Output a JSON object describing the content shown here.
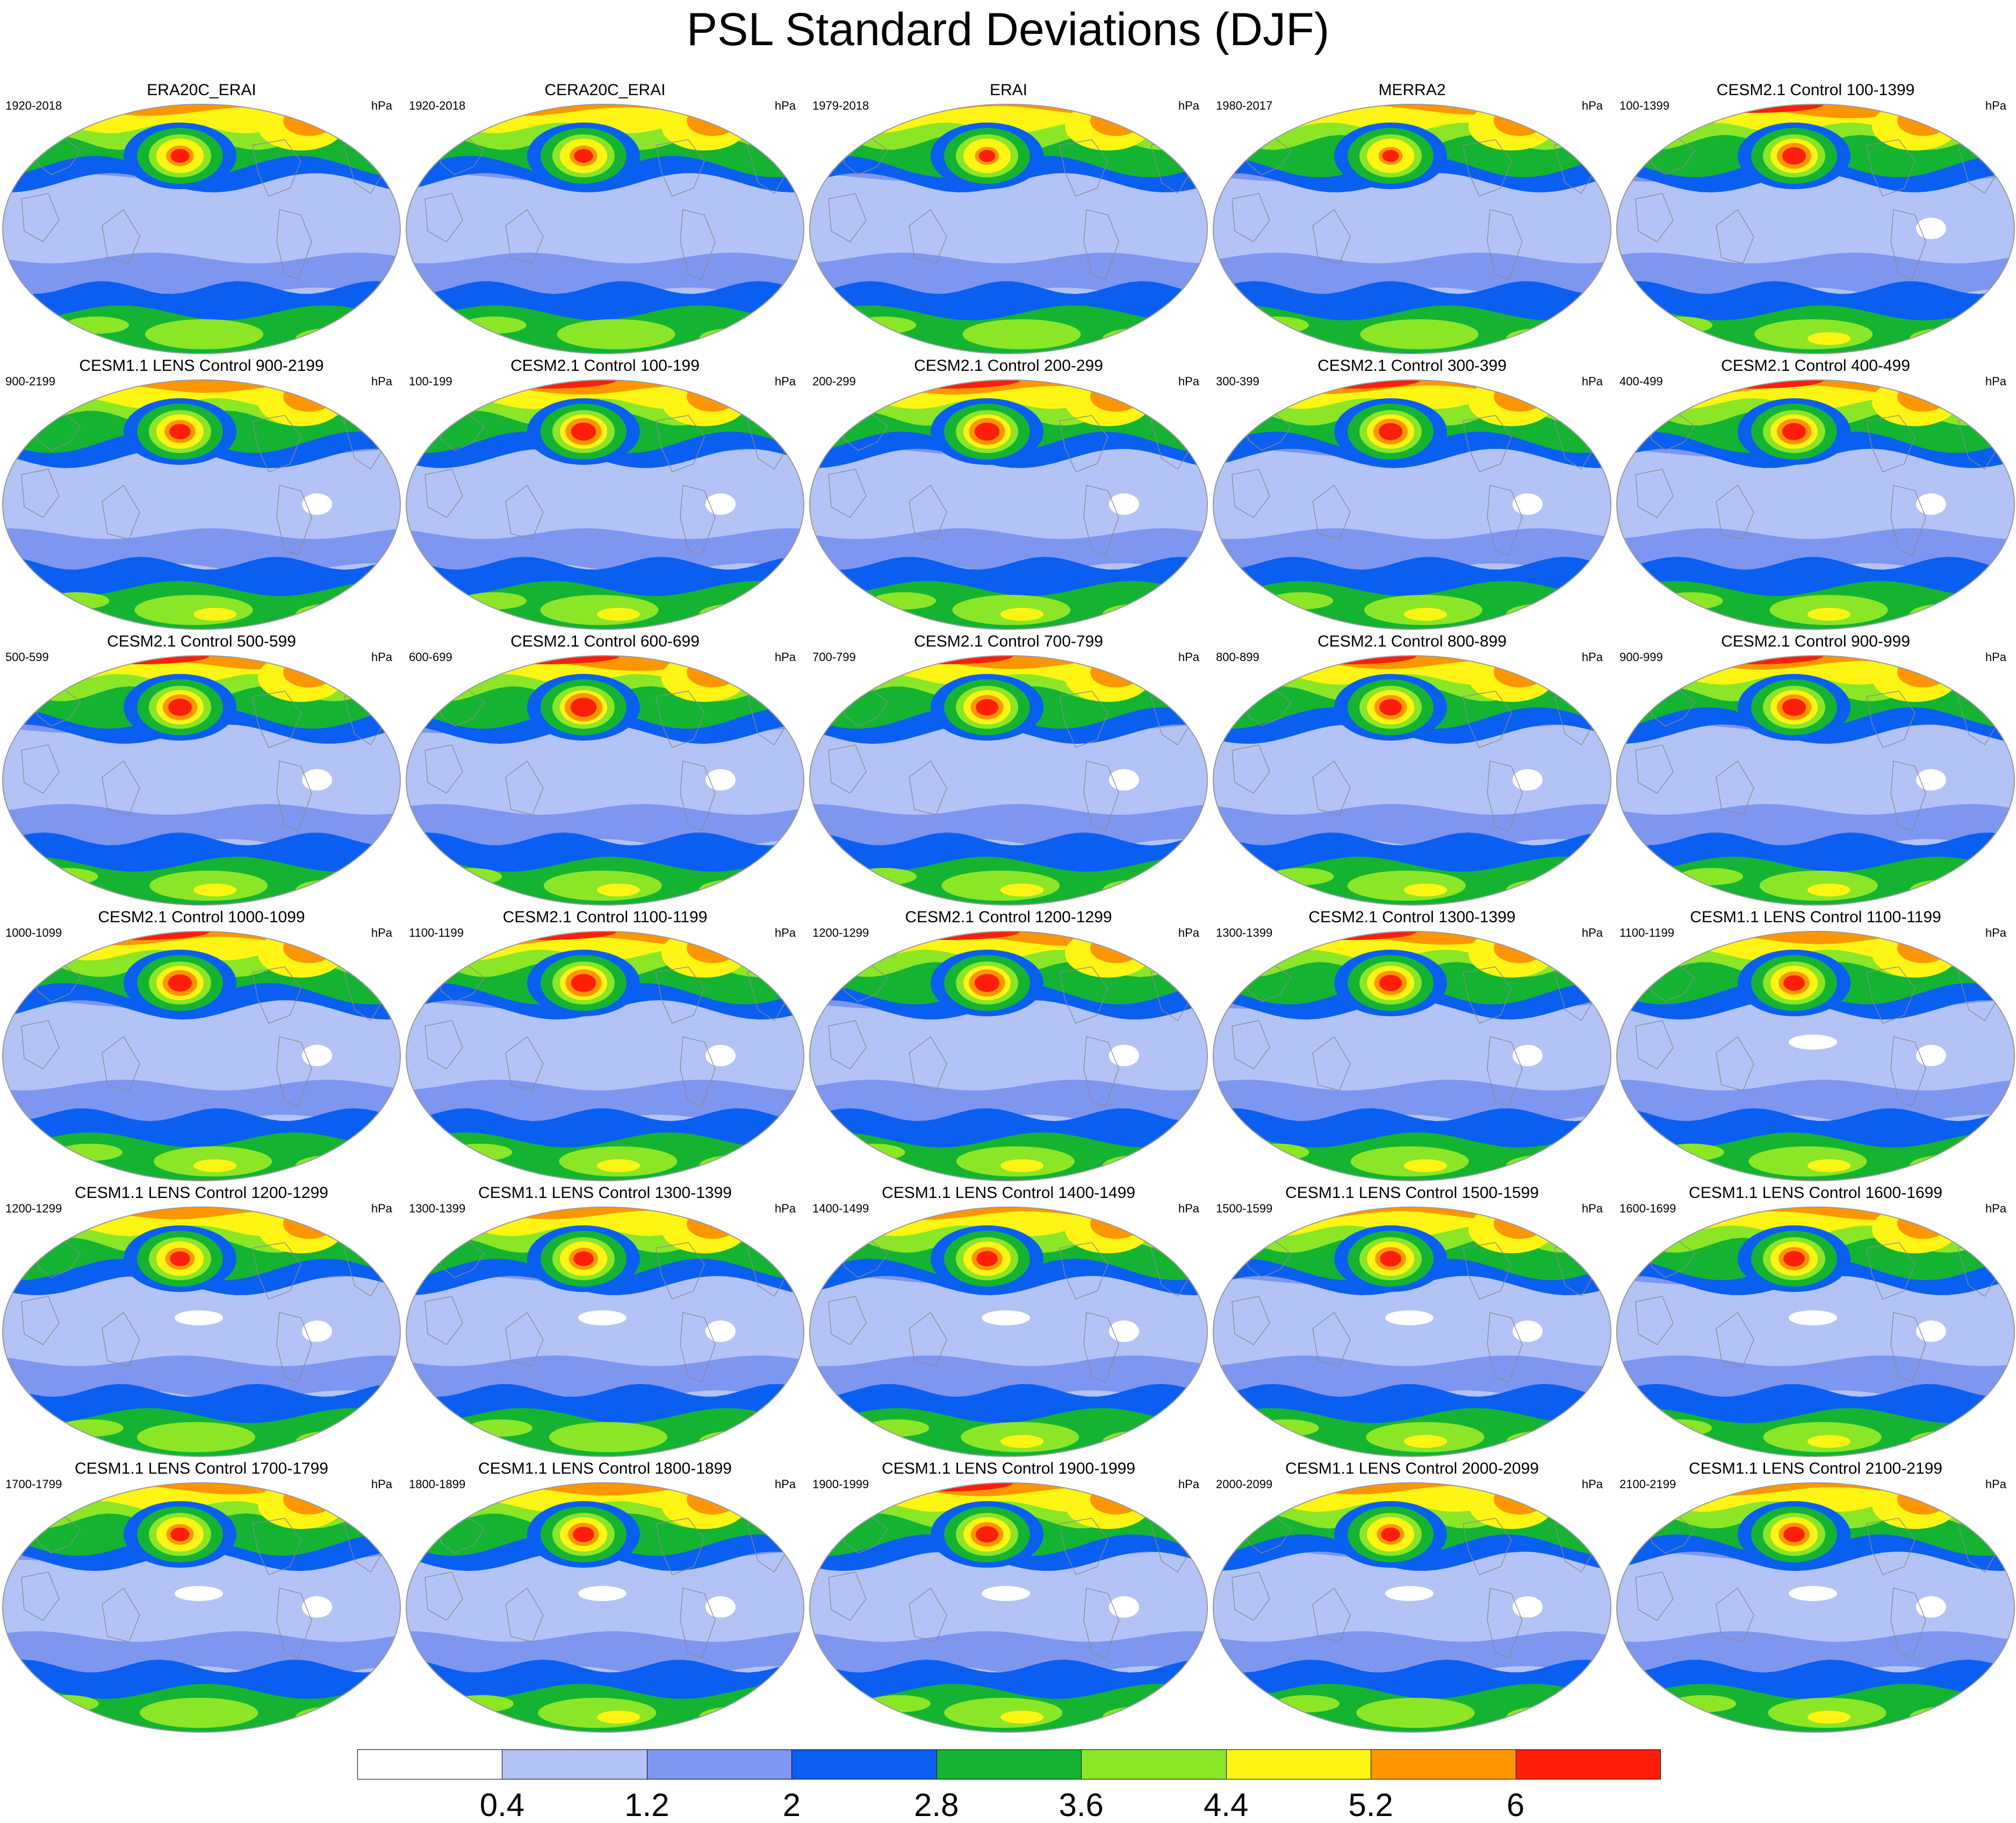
{
  "title": "PSL Standard Deviations (DJF)",
  "units": "hPa",
  "palette": [
    "#ffffff",
    "#b4c3f5",
    "#7d96f0",
    "#0a5ff0",
    "#14b432",
    "#8ce628",
    "#fff514",
    "#ff9600",
    "#ff1e0a"
  ],
  "colorbar": {
    "levels": [
      "0.4",
      "1.2",
      "2",
      "2.8",
      "3.6",
      "4.4",
      "5.2",
      "6"
    ]
  },
  "panels": [
    {
      "title": "ERA20C_ERAI",
      "period": "1920-2018",
      "intensity": 0.8
    },
    {
      "title": "CERA20C_ERAI",
      "period": "1920-2018",
      "intensity": 0.8
    },
    {
      "title": "ERAI",
      "period": "1979-2018",
      "intensity": 0.7
    },
    {
      "title": "MERRA2",
      "period": "1980-2017",
      "intensity": 0.7
    },
    {
      "title": "CESM2.1 Control 100-1399",
      "period": "100-1399",
      "intensity": 1.0
    },
    {
      "title": "CESM1.1 LENS Control 900-2199",
      "period": "900-2199",
      "intensity": 0.9
    },
    {
      "title": "CESM2.1 Control 100-199",
      "period": "100-199",
      "intensity": 1.05
    },
    {
      "title": "CESM2.1 Control 200-299",
      "period": "200-299",
      "intensity": 1.05
    },
    {
      "title": "CESM2.1 Control 300-399",
      "period": "300-399",
      "intensity": 1.0
    },
    {
      "title": "CESM2.1 Control 400-499",
      "period": "400-499",
      "intensity": 1.0
    },
    {
      "title": "CESM2.1 Control 500-599",
      "period": "500-599",
      "intensity": 1.0
    },
    {
      "title": "CESM2.1 Control 600-699",
      "period": "600-699",
      "intensity": 1.1
    },
    {
      "title": "CESM2.1 Control 700-799",
      "period": "700-799",
      "intensity": 0.95
    },
    {
      "title": "CESM2.1 Control 800-899",
      "period": "800-899",
      "intensity": 0.95
    },
    {
      "title": "CESM2.1 Control 900-999",
      "period": "900-999",
      "intensity": 1.0
    },
    {
      "title": "CESM2.1 Control 1000-1099",
      "period": "1000-1099",
      "intensity": 1.0
    },
    {
      "title": "CESM2.1 Control 1100-1199",
      "period": "1100-1199",
      "intensity": 1.05
    },
    {
      "title": "CESM2.1 Control 1200-1299",
      "period": "1200-1299",
      "intensity": 1.05
    },
    {
      "title": "CESM2.1 Control 1300-1399",
      "period": "1300-1399",
      "intensity": 0.95
    },
    {
      "title": "CESM1.1 LENS Control 1100-1199",
      "period": "1100-1199",
      "intensity": 0.9
    },
    {
      "title": "CESM1.1 LENS Control 1200-1299",
      "period": "1200-1299",
      "intensity": 0.85
    },
    {
      "title": "CESM1.1 LENS Control 1300-1399",
      "period": "1300-1399",
      "intensity": 0.85
    },
    {
      "title": "CESM1.1 LENS Control 1400-1499",
      "period": "1400-1499",
      "intensity": 0.9
    },
    {
      "title": "CESM1.1 LENS Control 1500-1599",
      "period": "1500-1599",
      "intensity": 0.9
    },
    {
      "title": "CESM1.1 LENS Control 1600-1699",
      "period": "1600-1699",
      "intensity": 0.9
    },
    {
      "title": "CESM1.1 LENS Control 1700-1799",
      "period": "1700-1799",
      "intensity": 0.8
    },
    {
      "title": "CESM1.1 LENS Control 1800-1899",
      "period": "1800-1899",
      "intensity": 0.9
    },
    {
      "title": "CESM1.1 LENS Control 1900-1999",
      "period": "1900-1999",
      "intensity": 0.95
    },
    {
      "title": "CESM1.1 LENS Control 2000-2099",
      "period": "2000-2099",
      "intensity": 0.8
    },
    {
      "title": "CESM1.1 LENS Control 2100-2199",
      "period": "2100-2199",
      "intensity": 0.9
    }
  ]
}
